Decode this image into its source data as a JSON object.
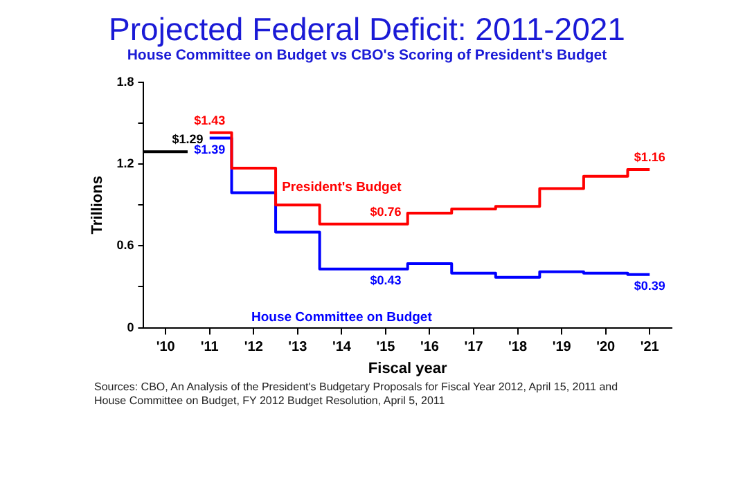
{
  "chart_data": {
    "type": "step",
    "title": "Projected Federal Deficit: 2011-2021",
    "subtitle": "House Committee on Budget vs CBO's Scoring of President's Budget",
    "xlabel": "Fiscal year",
    "ylabel": "Trillions",
    "x": [
      2011,
      2012,
      2013,
      2014,
      2015,
      2016,
      2017,
      2018,
      2019,
      2020,
      2021
    ],
    "series": [
      {
        "type": "line",
        "color": "#000000",
        "x": [
          2009.5,
          2010.5
        ],
        "values": [
          1.29,
          1.29
        ],
        "value_labels": [
          null,
          "$1.29"
        ]
      },
      {
        "name": "President's Budget",
        "color": "#ff0000",
        "values": [
          1.43,
          1.17,
          0.9,
          0.76,
          0.76,
          0.84,
          0.87,
          0.89,
          1.02,
          1.11,
          1.16
        ],
        "value_labels": [
          "$1.43",
          null,
          null,
          null,
          "$0.76",
          null,
          null,
          null,
          null,
          null,
          "$1.16"
        ]
      },
      {
        "name": "House Committee on Budget",
        "color": "#0000ff",
        "values": [
          1.39,
          0.99,
          0.7,
          0.43,
          0.43,
          0.47,
          0.4,
          0.37,
          0.41,
          0.4,
          0.39
        ],
        "value_labels": [
          "$1.39",
          null,
          null,
          null,
          "$0.43",
          null,
          null,
          null,
          null,
          null,
          "$0.39"
        ]
      }
    ],
    "xlim": [
      2009.5,
      2021.5
    ],
    "xticks": [
      {
        "value": 2010,
        "label": "'10"
      },
      {
        "value": 2011,
        "label": "'11"
      },
      {
        "value": 2012,
        "label": "'12"
      },
      {
        "value": 2013,
        "label": "'13"
      },
      {
        "value": 2014,
        "label": "'14"
      },
      {
        "value": 2015,
        "label": "'15"
      },
      {
        "value": 2016,
        "label": "'16"
      },
      {
        "value": 2017,
        "label": "'17"
      },
      {
        "value": 2018,
        "label": "'18"
      },
      {
        "value": 2019,
        "label": "'19"
      },
      {
        "value": 2020,
        "label": "'20"
      },
      {
        "value": 2021,
        "label": "'21"
      }
    ],
    "ylim": [
      0,
      1.8
    ],
    "yticks": [
      0,
      {
        "value": 0.3,
        "label": null
      },
      0.6,
      {
        "value": 0.9,
        "label": null
      },
      1.2,
      {
        "value": 1.5,
        "label": null
      },
      1.8
    ],
    "grid": false,
    "legend": false,
    "marker": "none",
    "line_style": "solid",
    "annotations": [
      "Sources: CBO, An Analysis of the President's Budgetary Proposals for Fiscal Year 2012, April 15, 2011 and House Committee on Budget, FY 2012 Budget Resolution, April 5, 2011"
    ]
  }
}
